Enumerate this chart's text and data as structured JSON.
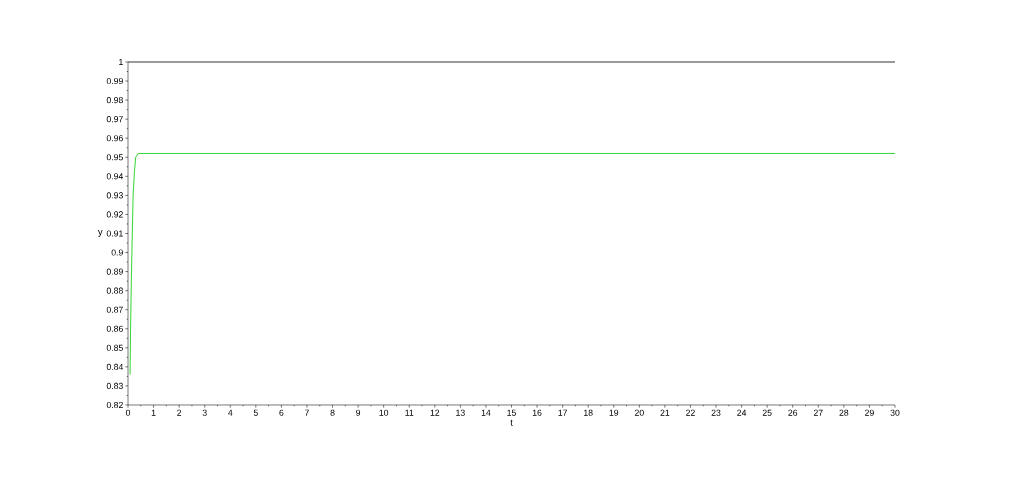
{
  "chart_data": {
    "type": "line",
    "xlabel": "t",
    "ylabel": "y",
    "x": [
      0.08,
      0.1,
      0.13,
      0.16,
      0.2,
      0.25,
      0.3,
      0.4,
      30
    ],
    "series": [
      {
        "color": "#00cc00",
        "values": [
          0.836,
          0.86,
          0.885,
          0.905,
          0.93,
          0.942,
          0.95,
          0.952,
          0.952
        ]
      }
    ],
    "xlim": [
      0,
      30
    ],
    "ylim": [
      0.82,
      1
    ],
    "xticks": [
      0,
      1,
      2,
      3,
      4,
      5,
      6,
      7,
      8,
      9,
      10,
      11,
      12,
      13,
      14,
      15,
      16,
      17,
      18,
      19,
      20,
      21,
      22,
      23,
      24,
      25,
      26,
      27,
      28,
      29,
      30
    ],
    "yticks": [
      0.82,
      0.83,
      0.84,
      0.85,
      0.86,
      0.87,
      0.88,
      0.89,
      0.9,
      0.91,
      0.92,
      0.93,
      0.94,
      0.95,
      0.96,
      0.97,
      0.98,
      0.99,
      1
    ],
    "ref_lines": [
      {
        "axis": "y",
        "value": 1,
        "color": "#000000"
      }
    ],
    "grid": false,
    "marker": "none",
    "line_style": "solid"
  }
}
